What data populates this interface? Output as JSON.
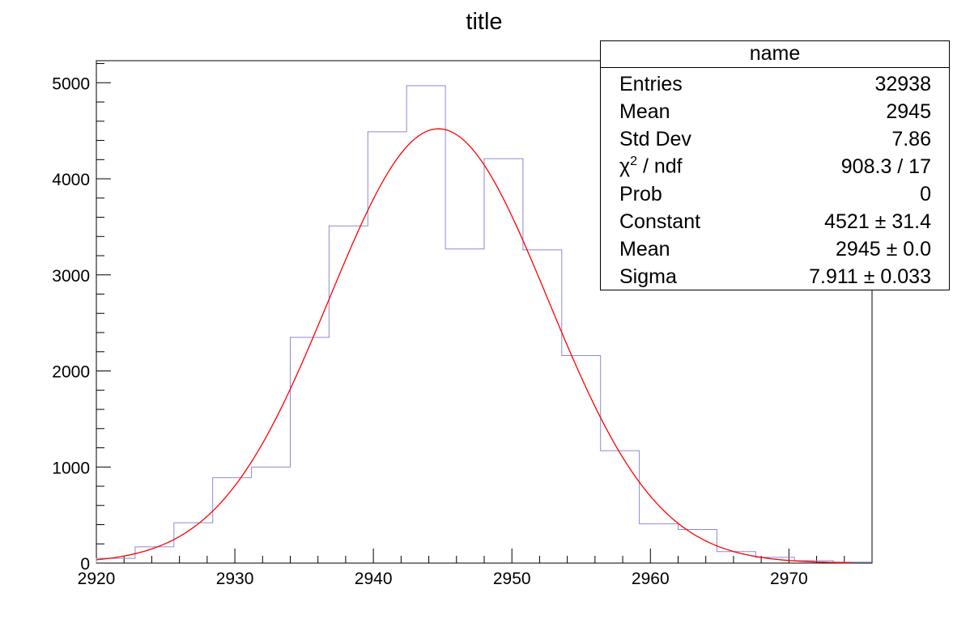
{
  "chart_data": {
    "type": "bar",
    "title": "title",
    "xlabel": "",
    "ylabel": "",
    "xlim": [
      2920,
      2976
    ],
    "ylim": [
      0,
      5230
    ],
    "x_ticks": [
      "2920",
      "2930",
      "2940",
      "2950",
      "2960",
      "2970"
    ],
    "y_ticks": [
      "0",
      "1000",
      "2000",
      "3000",
      "4000",
      "5000"
    ],
    "bin_width": 2.8,
    "bin_edges_start": 2920,
    "values": [
      50,
      170,
      420,
      890,
      1000,
      2350,
      3510,
      4490,
      4970,
      3270,
      4210,
      3260,
      2160,
      1170,
      410,
      350,
      120,
      60,
      25,
      10
    ],
    "histogram_color": "#8a8ad6",
    "fit": {
      "function": "gaus",
      "color": "#ff0000",
      "constant": 4521,
      "mean": 2944.7,
      "sigma": 7.911
    },
    "stats_box": {
      "title": "name",
      "rows": [
        {
          "label": "Entries",
          "value": "32938"
        },
        {
          "label": "Mean",
          "value": "2945"
        },
        {
          "label": "Std Dev",
          "value": "7.86"
        },
        {
          "label_main": "χ",
          "label_sup": "2",
          "label_rest": " / ndf",
          "value": "908.3 / 17"
        },
        {
          "label": "Prob",
          "value": "0"
        },
        {
          "label": "Constant",
          "value": "4521 ± 31.4"
        },
        {
          "label": "Mean",
          "value": "2945 ± 0.0"
        },
        {
          "label": "Sigma",
          "value": "7.911 ± 0.033"
        }
      ]
    },
    "grid": false,
    "legend_position": "top-right"
  }
}
